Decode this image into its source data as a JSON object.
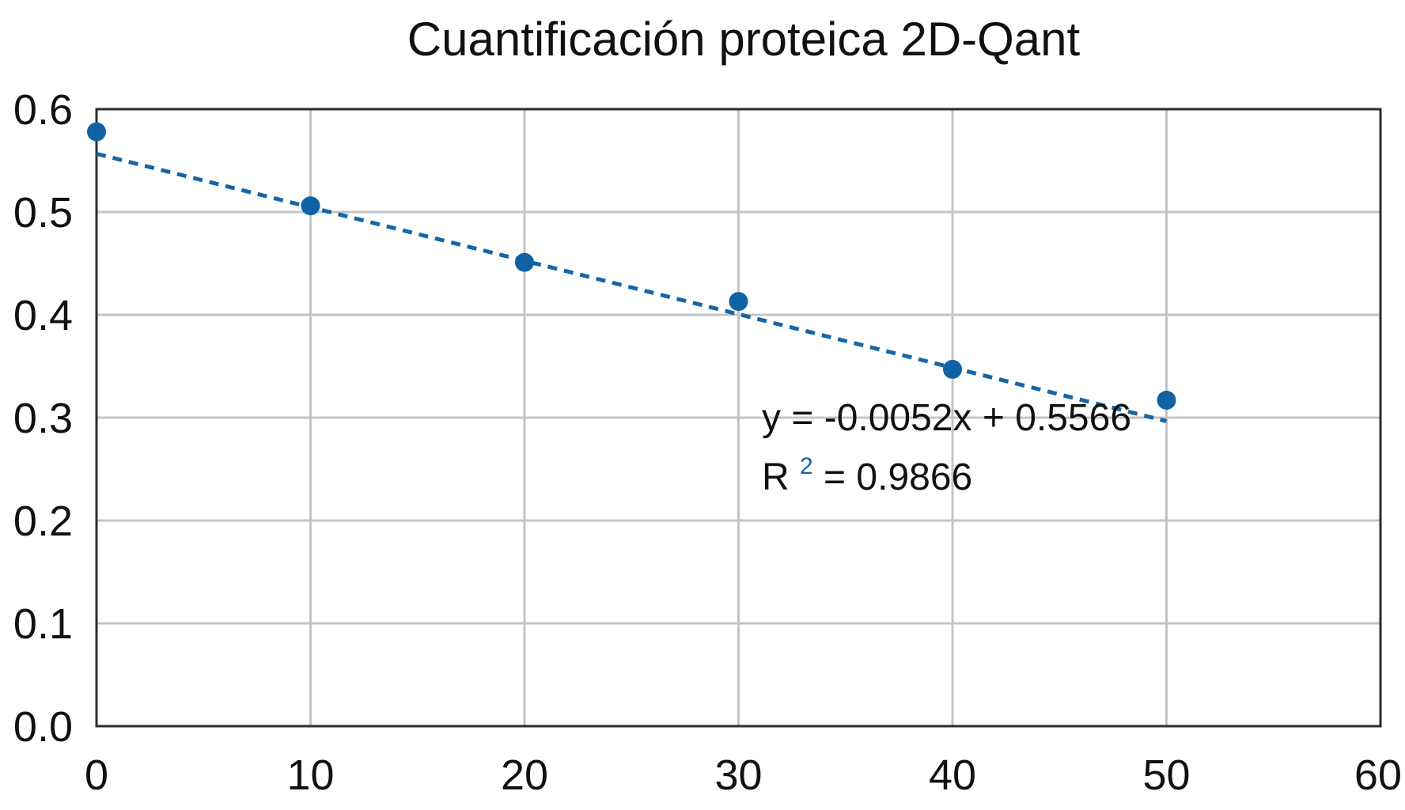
{
  "chart_data": {
    "type": "scatter",
    "title": "Cuantificación proteica 2D-Qant",
    "xlabel": "",
    "ylabel": "",
    "xlim": [
      0,
      60
    ],
    "ylim": [
      0.0,
      0.6
    ],
    "x_ticks": [
      "0",
      "10",
      "20",
      "30",
      "40",
      "50",
      "60"
    ],
    "y_ticks": [
      "0.0",
      "0.1",
      "0.2",
      "0.3",
      "0.4",
      "0.5",
      "0.6"
    ],
    "grid": true,
    "series": [
      {
        "x": [
          0,
          10,
          20,
          30,
          40,
          50
        ],
        "y": [
          0.578,
          0.506,
          0.451,
          0.413,
          0.347,
          0.317
        ]
      }
    ],
    "trendline": {
      "slope": -0.0052,
      "intercept": 0.5566,
      "x_range": [
        0,
        50
      ],
      "equation_label": "y = -0.0052x + 0.5566",
      "r2_label_prefix": "R",
      "r2_label_sup": "2",
      "r2_label_suffix": " = 0.9866"
    },
    "colors": {
      "point": "#0f62a6",
      "trendline": "#1466a8",
      "grid": "#c4c4c4",
      "frame": "#2b2b2b",
      "superscript": "#1466a8"
    }
  }
}
